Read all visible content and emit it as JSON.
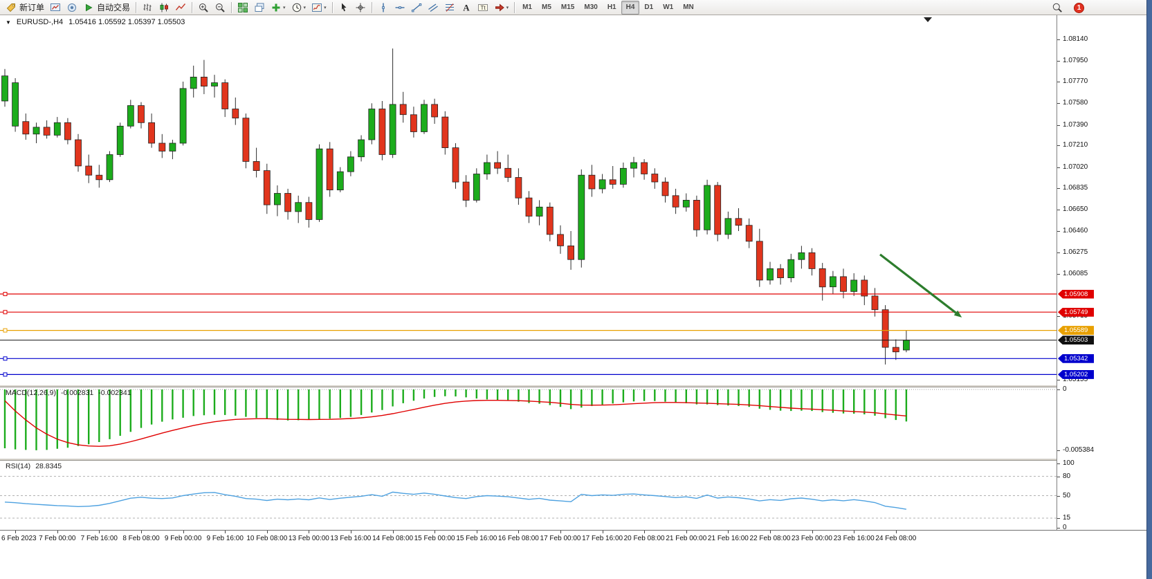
{
  "colors": {
    "bull": "#1cac1c",
    "bear": "#e1351d",
    "wick": "#2e2e2e",
    "candle_border": "#222222",
    "macd_hist": "#1cac1c",
    "macd_signal": "#e00000",
    "rsi_line": "#4da1e0",
    "level_red": "#e00000",
    "level_orange": "#e8a000",
    "level_blue": "#0000cd",
    "current_price": "#111111",
    "arrow_green": "#2d7d2d",
    "window_edge": "#46699e"
  },
  "toolbar": {
    "notification_count": "1",
    "groups": [
      {
        "items": [
          {
            "name": "new-order-button",
            "icon": "tag",
            "label": "新订单"
          },
          {
            "name": "new-chart-button",
            "icon": "newchart"
          },
          {
            "name": "profiles-button",
            "icon": "profiles"
          },
          {
            "name": "algo-trading-button",
            "icon": "play",
            "label": "自动交易"
          }
        ]
      },
      {
        "items": [
          {
            "name": "bar-chart-mode-button",
            "icon": "bars"
          },
          {
            "name": "candlestick-mode-button",
            "icon": "candles"
          },
          {
            "name": "line-chart-mode-button",
            "icon": "linechart"
          }
        ]
      },
      {
        "items": [
          {
            "name": "zoom-in-button",
            "icon": "zoomin"
          },
          {
            "name": "zoom-out-button",
            "icon": "zoomout"
          }
        ]
      },
      {
        "items": [
          {
            "name": "tile-windows-button",
            "icon": "tile"
          },
          {
            "name": "cascade-windows-button",
            "icon": "cascade"
          },
          {
            "name": "indicators-button",
            "icon": "plus",
            "dropdown": true
          },
          {
            "name": "periods-button",
            "icon": "clock",
            "dropdown": true
          },
          {
            "name": "templates-button",
            "icon": "template",
            "dropdown": true
          }
        ]
      },
      {
        "items": [
          {
            "name": "cursor-button",
            "icon": "cursor"
          },
          {
            "name": "crosshair-button",
            "icon": "crosshair"
          }
        ]
      },
      {
        "items": [
          {
            "name": "vertical-line-button",
            "icon": "vline"
          },
          {
            "name": "horizontal-line-button",
            "icon": "hline"
          },
          {
            "name": "trendline-button",
            "icon": "trendline"
          },
          {
            "name": "channel-button",
            "icon": "channel"
          },
          {
            "name": "fibonacci-button",
            "icon": "fibo"
          },
          {
            "name": "text-button",
            "icon": "text"
          },
          {
            "name": "label-button",
            "icon": "labelbox"
          },
          {
            "name": "objects-button",
            "icon": "arrowobj",
            "dropdown": true
          }
        ]
      },
      {
        "type": "timeframes",
        "items": [
          {
            "name": "tf-m1-button",
            "label": "M1"
          },
          {
            "name": "tf-m5-button",
            "label": "M5"
          },
          {
            "name": "tf-m15-button",
            "label": "M15"
          },
          {
            "name": "tf-m30-button",
            "label": "M30"
          },
          {
            "name": "tf-h1-button",
            "label": "H1"
          },
          {
            "name": "tf-h4-button",
            "label": "H4",
            "active": true
          },
          {
            "name": "tf-d1-button",
            "label": "D1"
          },
          {
            "name": "tf-w1-button",
            "label": "W1"
          },
          {
            "name": "tf-mn-button",
            "label": "MN"
          }
        ]
      }
    ]
  },
  "chart": {
    "header": {
      "caret": "▼",
      "symbol": "EURUSD-,H4",
      "ohlc": "1.05416 1.05592 1.05397 1.05503"
    },
    "shift_marker_icon": "▼",
    "macd": {
      "label": "MACD(12,26,9)",
      "value_main": "-0.002831",
      "value_signal": "-0.002341",
      "axis_labels": [
        "0",
        "-0.005384"
      ]
    },
    "rsi": {
      "label": "RSI(14)",
      "value": "28.8345",
      "axis_labels": [
        "100",
        "80",
        "50",
        "15",
        "0"
      ]
    }
  },
  "chart_data": {
    "type": "candlestick",
    "symbol": "EURUSD-",
    "timeframe": "H4",
    "last_ohlc": {
      "open": 1.05416,
      "high": 1.05592,
      "low": 1.05397,
      "close": 1.05503
    },
    "price_range": {
      "top": 1.08352,
      "bottom": 1.05113
    },
    "price_axis_ticks": [
      1.0814,
      1.0795,
      1.0777,
      1.0758,
      1.0739,
      1.0721,
      1.0702,
      1.06835,
      1.0665,
      1.0646,
      1.06275,
      1.06085,
      1.05715,
      1.05155
    ],
    "x_labels": [
      "6 Feb 2023",
      "7 Feb 00:00",
      "7 Feb 16:00",
      "8 Feb 08:00",
      "9 Feb 00:00",
      "9 Feb 16:00",
      "10 Feb 08:00",
      "13 Feb 00:00",
      "13 Feb 16:00",
      "14 Feb 08:00",
      "15 Feb 00:00",
      "15 Feb 16:00",
      "16 Feb 08:00",
      "17 Feb 00:00",
      "17 Feb 16:00",
      "20 Feb 08:00",
      "21 Feb 00:00",
      "21 Feb 16:00",
      "22 Feb 08:00",
      "23 Feb 00:00",
      "23 Feb 16:00",
      "24 Feb 08:00"
    ],
    "first_label_candle_index": 1,
    "candles_per_label": 4,
    "candles": [
      [
        1.076,
        1.0788,
        1.0755,
        1.0782
      ],
      [
        1.0738,
        1.078,
        1.0733,
        1.0776
      ],
      [
        1.0742,
        1.0749,
        1.0726,
        1.0731
      ],
      [
        1.0731,
        1.0741,
        1.0723,
        1.0737
      ],
      [
        1.0737,
        1.0743,
        1.0727,
        1.073
      ],
      [
        1.073,
        1.0746,
        1.0728,
        1.0741
      ],
      [
        1.0741,
        1.0745,
        1.0722,
        1.0726
      ],
      [
        1.0726,
        1.0731,
        1.0698,
        1.0703
      ],
      [
        1.0703,
        1.0713,
        1.0688,
        1.0695
      ],
      [
        1.0695,
        1.0704,
        1.0684,
        1.0691
      ],
      [
        1.0691,
        1.0716,
        1.0689,
        1.0713
      ],
      [
        1.0713,
        1.0741,
        1.0711,
        1.0738
      ],
      [
        1.0738,
        1.0761,
        1.0736,
        1.0756
      ],
      [
        1.0756,
        1.0759,
        1.0736,
        1.0741
      ],
      [
        1.0741,
        1.0749,
        1.0719,
        1.0723
      ],
      [
        1.0723,
        1.0731,
        1.071,
        1.0716
      ],
      [
        1.0716,
        1.0726,
        1.0709,
        1.0723
      ],
      [
        1.0723,
        1.0777,
        1.0721,
        1.0771
      ],
      [
        1.0771,
        1.0791,
        1.0763,
        1.0781
      ],
      [
        1.0781,
        1.0796,
        1.0766,
        1.0773
      ],
      [
        1.0773,
        1.0783,
        1.0763,
        1.0776
      ],
      [
        1.0776,
        1.0779,
        1.0746,
        1.0753
      ],
      [
        1.0753,
        1.0763,
        1.0739,
        1.0745
      ],
      [
        1.0745,
        1.0749,
        1.0701,
        1.0707
      ],
      [
        1.0707,
        1.0719,
        1.0693,
        1.0699
      ],
      [
        1.0699,
        1.0705,
        1.0661,
        1.0669
      ],
      [
        1.0669,
        1.0686,
        1.0659,
        1.0679
      ],
      [
        1.0679,
        1.0683,
        1.0656,
        1.0663
      ],
      [
        1.0663,
        1.0677,
        1.0653,
        1.0671
      ],
      [
        1.0671,
        1.0676,
        1.0649,
        1.0656
      ],
      [
        1.0656,
        1.0722,
        1.0654,
        1.0718
      ],
      [
        1.0718,
        1.0724,
        1.0676,
        1.0682
      ],
      [
        1.0682,
        1.0702,
        1.068,
        1.0698
      ],
      [
        1.0698,
        1.0716,
        1.0694,
        1.0711
      ],
      [
        1.0711,
        1.073,
        1.0707,
        1.0726
      ],
      [
        1.0726,
        1.0758,
        1.0722,
        1.0753
      ],
      [
        1.0753,
        1.076,
        1.0708,
        1.0713
      ],
      [
        1.0713,
        1.0806,
        1.071,
        1.0757
      ],
      [
        1.0757,
        1.0768,
        1.0741,
        1.0748
      ],
      [
        1.0748,
        1.0755,
        1.0728,
        1.0733
      ],
      [
        1.0733,
        1.0761,
        1.0731,
        1.0757
      ],
      [
        1.0757,
        1.0762,
        1.074,
        1.0746
      ],
      [
        1.0746,
        1.0751,
        1.0713,
        1.0719
      ],
      [
        1.0719,
        1.0723,
        1.0683,
        1.0689
      ],
      [
        1.0689,
        1.0695,
        1.0667,
        1.0673
      ],
      [
        1.0673,
        1.0701,
        1.0671,
        1.0696
      ],
      [
        1.0696,
        1.0713,
        1.0691,
        1.0706
      ],
      [
        1.0706,
        1.0716,
        1.0696,
        1.0701
      ],
      [
        1.0701,
        1.0713,
        1.0689,
        1.0693
      ],
      [
        1.0693,
        1.0701,
        1.0669,
        1.0675
      ],
      [
        1.0675,
        1.0681,
        1.0653,
        1.0659
      ],
      [
        1.0659,
        1.0673,
        1.0651,
        1.0667
      ],
      [
        1.0667,
        1.0671,
        1.0637,
        1.0643
      ],
      [
        1.0643,
        1.0651,
        1.0626,
        1.0633
      ],
      [
        1.0633,
        1.0646,
        1.0612,
        1.0621
      ],
      [
        1.0621,
        1.07,
        1.0614,
        1.0695
      ],
      [
        1.0695,
        1.0704,
        1.0676,
        1.0683
      ],
      [
        1.0683,
        1.0696,
        1.0679,
        1.0691
      ],
      [
        1.0691,
        1.0703,
        1.0683,
        1.0687
      ],
      [
        1.0687,
        1.0706,
        1.0684,
        1.0701
      ],
      [
        1.0701,
        1.0711,
        1.0693,
        1.0706
      ],
      [
        1.0706,
        1.0709,
        1.0691,
        1.0696
      ],
      [
        1.0696,
        1.0701,
        1.0683,
        1.0689
      ],
      [
        1.0689,
        1.0693,
        1.0671,
        1.0677
      ],
      [
        1.0677,
        1.0683,
        1.0661,
        1.0667
      ],
      [
        1.0667,
        1.0679,
        1.0663,
        1.0673
      ],
      [
        1.0673,
        1.0677,
        1.0641,
        1.0647
      ],
      [
        1.0647,
        1.0691,
        1.0643,
        1.0686
      ],
      [
        1.0686,
        1.0689,
        1.0637,
        1.0643
      ],
      [
        1.0643,
        1.0663,
        1.0639,
        1.0657
      ],
      [
        1.0657,
        1.0666,
        1.0646,
        1.0651
      ],
      [
        1.0651,
        1.0657,
        1.0631,
        1.0637
      ],
      [
        1.0637,
        1.0648,
        1.0597,
        1.0603
      ],
      [
        1.0603,
        1.0619,
        1.0599,
        1.0613
      ],
      [
        1.0613,
        1.0617,
        1.0599,
        1.0605
      ],
      [
        1.0605,
        1.0626,
        1.0601,
        1.0621
      ],
      [
        1.0621,
        1.0633,
        1.0613,
        1.0627
      ],
      [
        1.0627,
        1.0631,
        1.0607,
        1.0613
      ],
      [
        1.0613,
        1.0618,
        1.0585,
        1.0597
      ],
      [
        1.0597,
        1.0611,
        1.0591,
        1.0606
      ],
      [
        1.0606,
        1.0613,
        1.0587,
        1.0593
      ],
      [
        1.0593,
        1.0609,
        1.0589,
        1.0603
      ],
      [
        1.0603,
        1.0607,
        1.0581,
        1.0589
      ],
      [
        1.0589,
        1.0596,
        1.0571,
        1.0577
      ],
      [
        1.0577,
        1.0581,
        1.0529,
        1.0544
      ],
      [
        1.0544,
        1.0551,
        1.0533,
        1.054
      ],
      [
        1.05416,
        1.05592,
        1.05397,
        1.05503
      ]
    ],
    "levels": [
      {
        "name": "resistance-line-upper",
        "price": 1.05908,
        "label": "1.05908",
        "color": "#e00000"
      },
      {
        "name": "resistance-line-lower",
        "price": 1.05749,
        "label": "1.05749",
        "color": "#e00000"
      },
      {
        "name": "entry-level-line",
        "price": 1.05589,
        "label": "1.05589",
        "color": "#e8a000"
      },
      {
        "name": "current-price-line",
        "price": 1.05503,
        "label": "1.05503",
        "color": "#111111",
        "current": true
      },
      {
        "name": "support-line-upper",
        "price": 1.05342,
        "label": "1.05342",
        "color": "#0000cd"
      },
      {
        "name": "support-line-lower",
        "price": 1.05202,
        "label": "1.05202",
        "color": "#0000cd"
      }
    ],
    "annotation_arrow": {
      "from_index": 83.5,
      "from_price": 1.06254,
      "to_index": 91.3,
      "to_price": 1.05702,
      "color": "#2d7d2d"
    },
    "macd": {
      "params": "12,26,9",
      "current_histogram": -0.002831,
      "current_signal": -0.002341,
      "axis_min": -0.005384,
      "histogram": [
        -0.0052,
        -0.0053,
        -0.00535,
        -0.00538,
        -0.00535,
        -0.00525,
        -0.00515,
        -0.005,
        -0.00485,
        -0.00465,
        -0.0044,
        -0.0041,
        -0.00375,
        -0.0034,
        -0.0031,
        -0.00285,
        -0.00265,
        -0.0025,
        -0.00235,
        -0.00228,
        -0.00224,
        -0.00226,
        -0.00232,
        -0.00242,
        -0.00252,
        -0.00262,
        -0.0027,
        -0.00274,
        -0.00272,
        -0.00268,
        -0.00262,
        -0.00258,
        -0.00252,
        -0.00242,
        -0.00226,
        -0.00204,
        -0.00182,
        -0.0015,
        -0.00122,
        -0.001,
        -0.0008,
        -0.00066,
        -0.0006,
        -0.00062,
        -0.0007,
        -0.0008,
        -0.00088,
        -0.00094,
        -0.001,
        -0.00108,
        -0.0012,
        -0.00126,
        -0.00138,
        -0.00154,
        -0.00174,
        -0.0016,
        -0.00146,
        -0.00134,
        -0.00124,
        -0.00114,
        -0.00106,
        -0.00102,
        -0.00102,
        -0.00108,
        -0.00116,
        -0.00122,
        -0.00132,
        -0.00132,
        -0.00138,
        -0.00142,
        -0.00146,
        -0.00154,
        -0.0017,
        -0.0018,
        -0.00188,
        -0.0019,
        -0.00188,
        -0.0019,
        -0.002,
        -0.00206,
        -0.00212,
        -0.00214,
        -0.0022,
        -0.00232,
        -0.00254,
        -0.0027,
        -0.002831
      ],
      "signal": [
        -0.001,
        -0.0019,
        -0.0027,
        -0.0034,
        -0.00395,
        -0.0044,
        -0.0047,
        -0.0049,
        -0.005,
        -0.00503,
        -0.00498,
        -0.00483,
        -0.00462,
        -0.00438,
        -0.00412,
        -0.00386,
        -0.00362,
        -0.0034,
        -0.00319,
        -0.00301,
        -0.00286,
        -0.00274,
        -0.00265,
        -0.00261,
        -0.00259,
        -0.00259,
        -0.00261,
        -0.00264,
        -0.00265,
        -0.00266,
        -0.00265,
        -0.00264,
        -0.00261,
        -0.00257,
        -0.00251,
        -0.00242,
        -0.0023,
        -0.00214,
        -0.00196,
        -0.00177,
        -0.00157,
        -0.00139,
        -0.00123,
        -0.00111,
        -0.00103,
        -0.00098,
        -0.00096,
        -0.00096,
        -0.00097,
        -0.00099,
        -0.00103,
        -0.00108,
        -0.00114,
        -0.00122,
        -0.00132,
        -0.00138,
        -0.00139,
        -0.00138,
        -0.00136,
        -0.00131,
        -0.00126,
        -0.00121,
        -0.00117,
        -0.00115,
        -0.00115,
        -0.00117,
        -0.0012,
        -0.00122,
        -0.00126,
        -0.00129,
        -0.00132,
        -0.00137,
        -0.00143,
        -0.00151,
        -0.00158,
        -0.00165,
        -0.0017,
        -0.00174,
        -0.00179,
        -0.00184,
        -0.0019,
        -0.00195,
        -0.002,
        -0.00206,
        -0.00216,
        -0.00226,
        -0.002341
      ]
    },
    "rsi": {
      "period": 14,
      "current": 28.8345,
      "levels": [
        80,
        50,
        15
      ],
      "axis": [
        100,
        80,
        50,
        15,
        0
      ],
      "values": [
        40,
        39,
        37.5,
        36.5,
        35.5,
        34.5,
        34,
        33,
        33.5,
        35,
        38,
        42,
        46,
        47.5,
        46,
        45.5,
        46.5,
        50,
        52.5,
        54.5,
        55,
        51.5,
        49,
        45.5,
        44.5,
        42.5,
        44.5,
        43.5,
        44.8,
        43.6,
        46.5,
        44,
        46,
        47.5,
        49,
        51.5,
        49,
        55.5,
        53.5,
        52,
        54,
        52,
        49.5,
        47,
        45.5,
        48.5,
        50,
        49.3,
        48.3,
        46.3,
        44.3,
        45.8,
        43,
        41.8,
        40.5,
        52,
        50,
        51.2,
        50.4,
        52,
        52.6,
        51.2,
        50,
        48.6,
        47,
        48.2,
        45.8,
        51,
        46.2,
        48,
        46.8,
        44.8,
        41.8,
        43.8,
        42.6,
        45.2,
        46.2,
        44.4,
        41.8,
        43.6,
        42,
        43.8,
        41.8,
        39.2,
        33.5,
        31.5,
        28.8345
      ]
    }
  }
}
